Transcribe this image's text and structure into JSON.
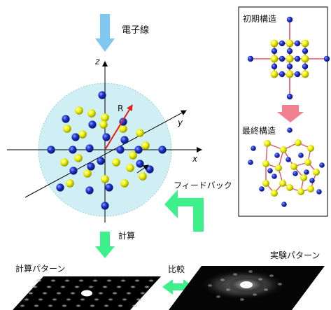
{
  "labels": {
    "electron_beam": "電子線",
    "initial_structure": "初期構造",
    "final_structure": "最終構造",
    "feedback": "フィードバック",
    "calculation": "計算",
    "calc_pattern": "計算パターン",
    "comparison": "比較",
    "exp_pattern": "実験パターン"
  },
  "axes": {
    "x": "x",
    "y": "y",
    "z": "z",
    "radius": "R"
  },
  "colors": {
    "blue_atom": "#1a2fc4",
    "yellow_atom": "#e8f000",
    "sphere_fill": "#cfeff4",
    "arrow_beam": "#7ec8f2",
    "arrow_green": "#3ef08a",
    "arrow_pink": "#f08090",
    "radius_arrow": "#e02020",
    "bond": "#e0506a"
  },
  "icons": [
    "down-arrow-icon",
    "feedback-arrow-icon",
    "double-arrow-icon"
  ]
}
